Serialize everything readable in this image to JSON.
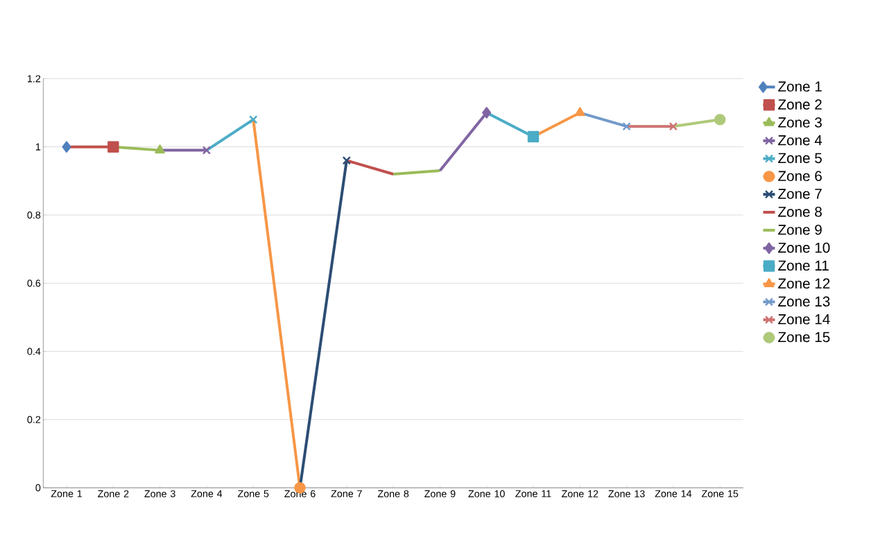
{
  "chart_data": {
    "type": "line",
    "categories": [
      "Zone 1",
      "Zone 2",
      "Zone 3",
      "Zone 4",
      "Zone 5",
      "Zone 6",
      "Zone 7",
      "Zone 8",
      "Zone 9",
      "Zone 10",
      "Zone 11",
      "Zone 12",
      "Zone 13",
      "Zone 14",
      "Zone 15"
    ],
    "series": [
      {
        "name": "Zone 1",
        "color": "#4f81bd",
        "marker": "diamond",
        "values": [
          1.0,
          null,
          null,
          null,
          null,
          null,
          null,
          null,
          null,
          null,
          null,
          null,
          null,
          null,
          null
        ]
      },
      {
        "name": "Zone 2",
        "color": "#c0504d",
        "marker": "square",
        "values": [
          1.0,
          1.0,
          null,
          null,
          null,
          null,
          null,
          null,
          null,
          null,
          null,
          null,
          null,
          null,
          null
        ]
      },
      {
        "name": "Zone 3",
        "color": "#9bbb59",
        "marker": "triangle",
        "values": [
          null,
          1.0,
          0.99,
          null,
          null,
          null,
          null,
          null,
          null,
          null,
          null,
          null,
          null,
          null,
          null
        ]
      },
      {
        "name": "Zone 4",
        "color": "#8064a2",
        "marker": "cross",
        "values": [
          null,
          null,
          0.99,
          0.99,
          null,
          null,
          null,
          null,
          null,
          null,
          null,
          null,
          null,
          null,
          null
        ]
      },
      {
        "name": "Zone 5",
        "color": "#4bacc6",
        "marker": "cross",
        "values": [
          null,
          null,
          null,
          0.99,
          1.08,
          null,
          null,
          null,
          null,
          null,
          null,
          null,
          null,
          null,
          null
        ]
      },
      {
        "name": "Zone 6",
        "color": "#f79646",
        "marker": "circle",
        "values": [
          null,
          null,
          null,
          null,
          1.08,
          0.0,
          null,
          null,
          null,
          null,
          null,
          null,
          null,
          null,
          null
        ]
      },
      {
        "name": "Zone 7",
        "color": "#2c4d75",
        "marker": "cross",
        "values": [
          null,
          null,
          null,
          null,
          null,
          0.0,
          0.96,
          null,
          null,
          null,
          null,
          null,
          null,
          null,
          null
        ]
      },
      {
        "name": "Zone 8",
        "color": "#c0504d",
        "marker": "none",
        "values": [
          null,
          null,
          null,
          null,
          null,
          null,
          0.96,
          0.92,
          null,
          null,
          null,
          null,
          null,
          null,
          null
        ]
      },
      {
        "name": "Zone 9",
        "color": "#9bbb59",
        "marker": "none",
        "values": [
          null,
          null,
          null,
          null,
          null,
          null,
          null,
          0.92,
          0.93,
          null,
          null,
          null,
          null,
          null,
          null
        ]
      },
      {
        "name": "Zone 10",
        "color": "#8064a2",
        "marker": "diamond",
        "values": [
          null,
          null,
          null,
          null,
          null,
          null,
          null,
          null,
          0.93,
          1.1,
          null,
          null,
          null,
          null,
          null
        ]
      },
      {
        "name": "Zone 11",
        "color": "#4bacc6",
        "marker": "square",
        "values": [
          null,
          null,
          null,
          null,
          null,
          null,
          null,
          null,
          null,
          1.1,
          1.03,
          null,
          null,
          null,
          null
        ]
      },
      {
        "name": "Zone 12",
        "color": "#f79646",
        "marker": "triangle",
        "values": [
          null,
          null,
          null,
          null,
          null,
          null,
          null,
          null,
          null,
          null,
          1.03,
          1.1,
          null,
          null,
          null
        ]
      },
      {
        "name": "Zone 13",
        "color": "#729aca",
        "marker": "cross",
        "values": [
          null,
          null,
          null,
          null,
          null,
          null,
          null,
          null,
          null,
          null,
          null,
          1.1,
          1.06,
          null,
          null
        ]
      },
      {
        "name": "Zone 14",
        "color": "#cd7371",
        "marker": "cross",
        "values": [
          null,
          null,
          null,
          null,
          null,
          null,
          null,
          null,
          null,
          null,
          null,
          null,
          1.06,
          1.06,
          null
        ]
      },
      {
        "name": "Zone 15",
        "color": "#afc97a",
        "marker": "circle",
        "values": [
          null,
          null,
          null,
          null,
          null,
          null,
          null,
          null,
          null,
          null,
          null,
          null,
          null,
          1.06,
          1.08
        ]
      }
    ],
    "ylim": [
      0,
      1.2
    ],
    "yticks": [
      0,
      0.2,
      0.4,
      0.6,
      0.8,
      1,
      1.2
    ],
    "grid": "y",
    "legend": "right",
    "line_style": "solid"
  }
}
